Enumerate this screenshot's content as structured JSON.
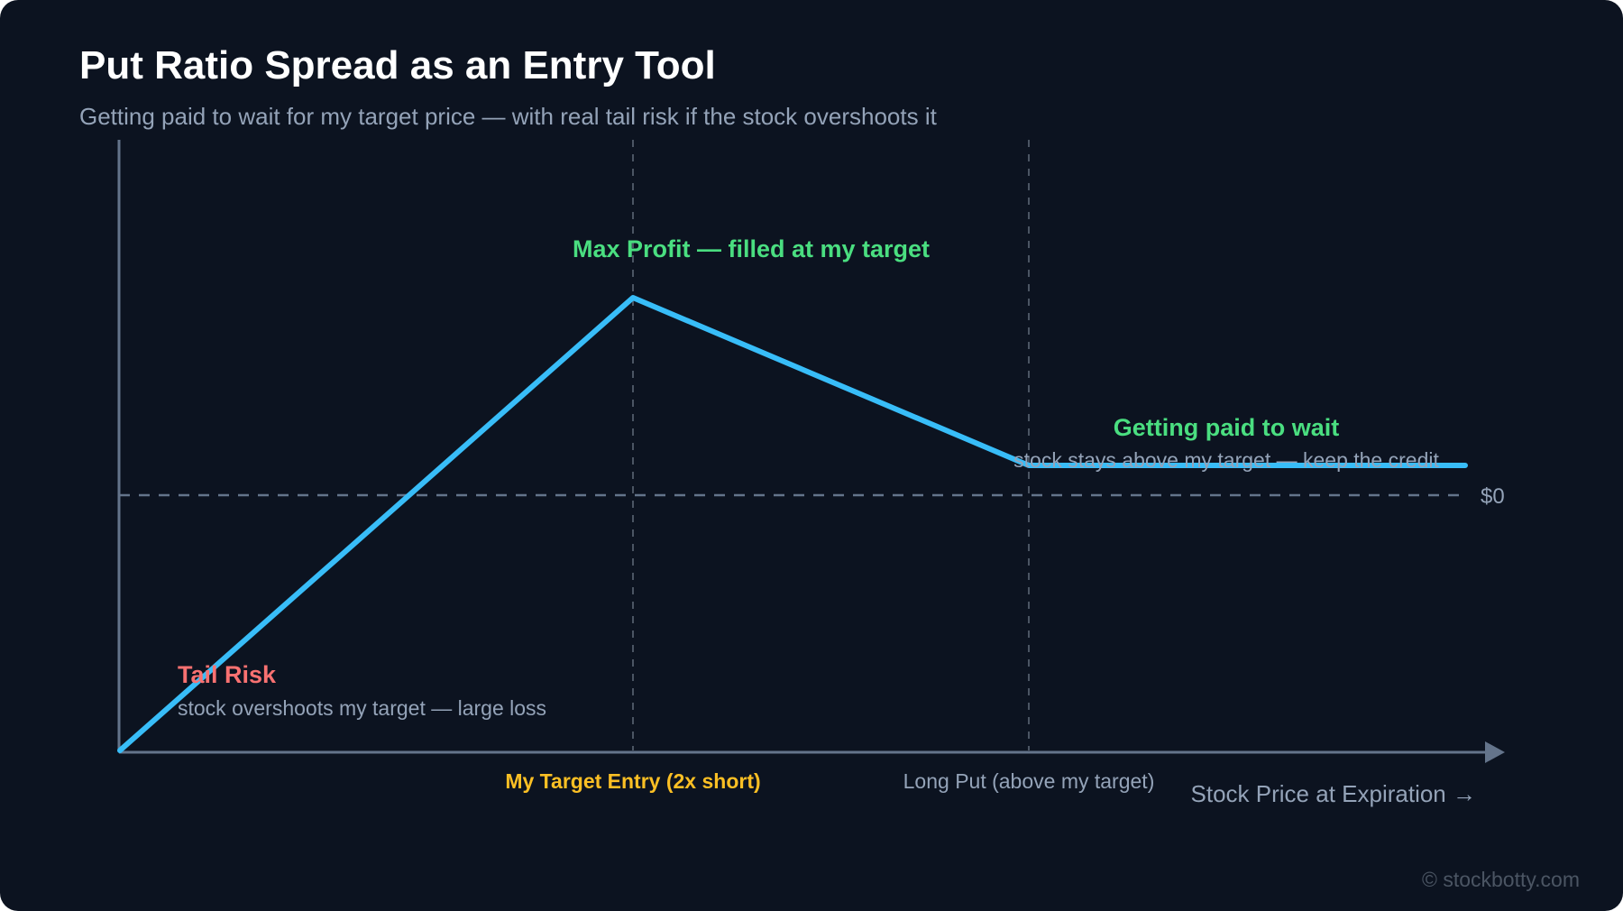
{
  "title": "Put Ratio Spread as an Entry Tool",
  "subtitle": "Getting paid to wait for my target price — with real tail risk if the stock overshoots it",
  "annotations": {
    "max_profit": "Max Profit — filled at my target",
    "paid_wait_title": "Getting paid to wait",
    "paid_wait_sub": "stock stays above my target — keep the credit",
    "tail_risk_title": "Tail Risk",
    "tail_risk_sub": "stock overshoots my target — large loss"
  },
  "labels": {
    "zero": "$0",
    "target_entry": "My Target Entry (2x short)",
    "long_put": "Long Put (above my target)",
    "x_axis": "Stock Price at Expiration →"
  },
  "footer": {
    "copyright": "© stockbotty.com"
  },
  "colors": {
    "background": "#0c1320",
    "payoff_line": "#38bdf8",
    "axis": "#64748b",
    "guide": "#4b5563",
    "profit_green": "#4ade80",
    "risk_red": "#f87171",
    "target_yellow": "#fbbf24",
    "muted_text": "#94a3b8"
  }
}
